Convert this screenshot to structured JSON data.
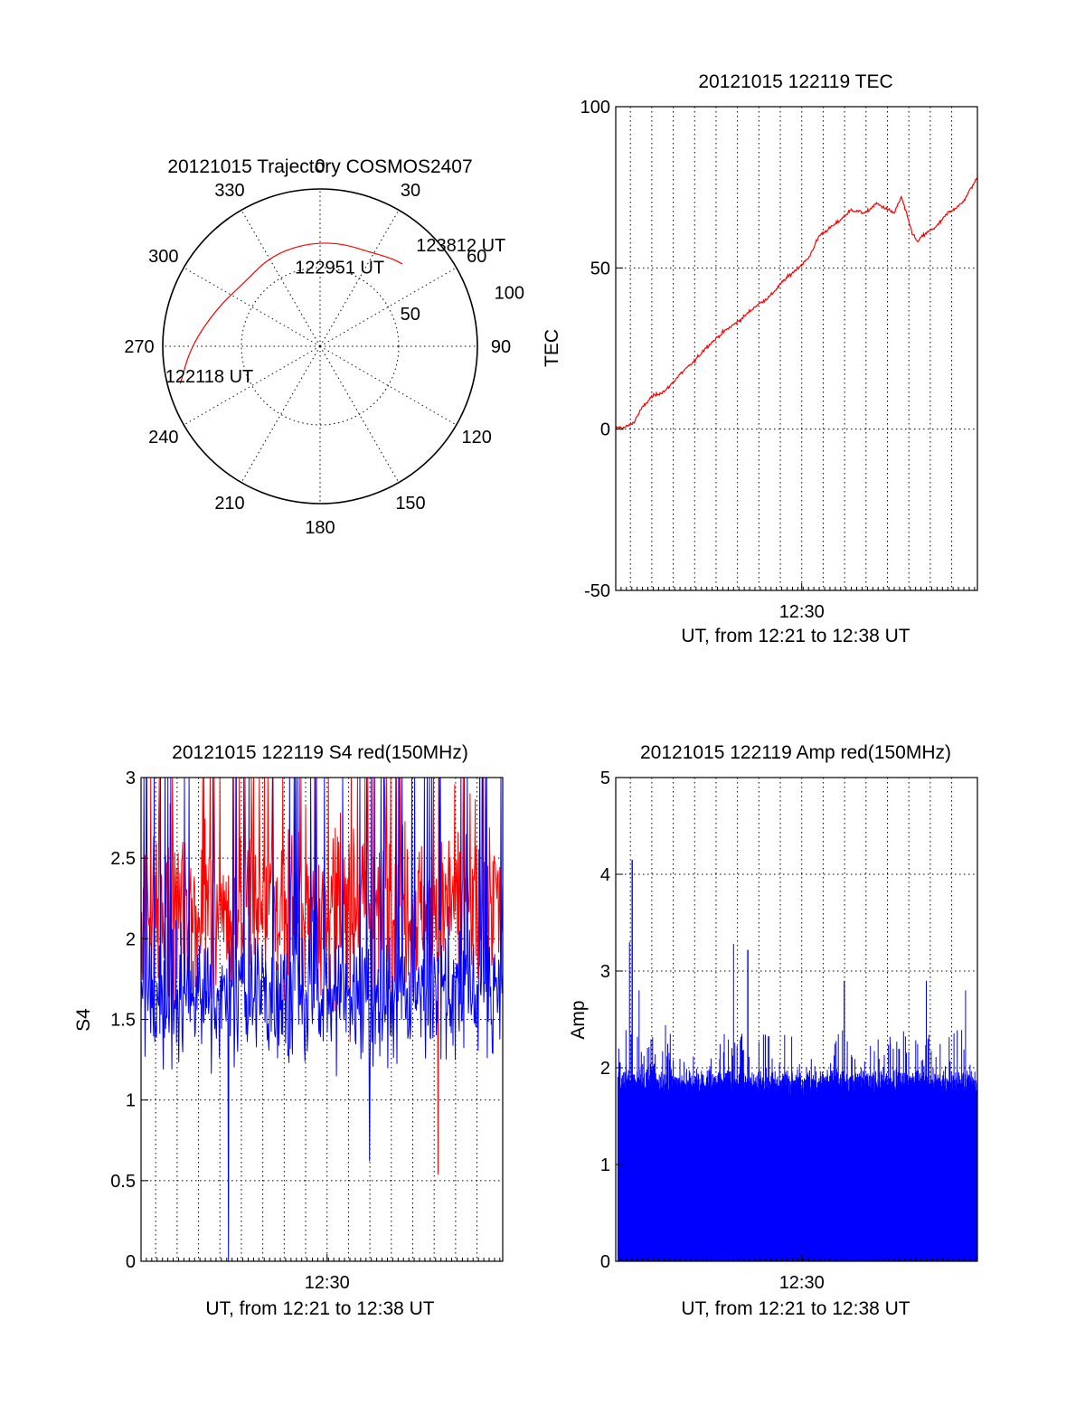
{
  "chart_data": [
    {
      "id": "trajectory",
      "type": "polar",
      "title": "20121015 Trajectory COSMOS2407",
      "azimuth_labels": [
        "0",
        "30",
        "60",
        "90",
        "120",
        "150",
        "180",
        "210",
        "240",
        "270",
        "300",
        "330"
      ],
      "radius_labels": [
        "50",
        "100"
      ],
      "rlim": [
        0,
        100
      ],
      "grid": true,
      "line_color": "#ff0000",
      "track": [
        {
          "az": 255,
          "r": 92
        },
        {
          "az": 270,
          "r": 82
        },
        {
          "az": 290,
          "r": 70
        },
        {
          "az": 310,
          "r": 63
        },
        {
          "az": 330,
          "r": 65
        },
        {
          "az": 350,
          "r": 66
        },
        {
          "az": 10,
          "r": 67
        },
        {
          "az": 29,
          "r": 68
        },
        {
          "az": 39,
          "r": 72
        },
        {
          "az": 45,
          "r": 74
        }
      ],
      "annotations": [
        {
          "text": "123812 UT",
          "az": 56,
          "r": 108
        },
        {
          "text": "122951 UT",
          "az": 15,
          "r": 48
        },
        {
          "text": "122118 UT",
          "az": 252,
          "r": 74
        }
      ]
    },
    {
      "id": "tec",
      "type": "line",
      "title": "20121015 122119 TEC",
      "xlabel": "UT, from 12:21 to 12:38 UT",
      "ylabel": "TEC",
      "xtick_labels": [
        "12:30"
      ],
      "ytick_labels": [
        "-50",
        "0",
        "50",
        "100"
      ],
      "ylim": [
        -50,
        100
      ],
      "xlim_seconds": [
        0,
        1013
      ],
      "grid": true,
      "line_color": "#ff0000",
      "series": [
        {
          "x_seconds": [
            0,
            25,
            50,
            70,
            100,
            140,
            180,
            220,
            250,
            300,
            350,
            390,
            430,
            470,
            490,
            540,
            570,
            620,
            660,
            700,
            730,
            780,
            800,
            830,
            845,
            860,
            900,
            930,
            970,
            1013
          ],
          "values": [
            0.5,
            0.5,
            2,
            6,
            10,
            12,
            17,
            21,
            25,
            30,
            34,
            38,
            41,
            46,
            48,
            53,
            60,
            64,
            68,
            67,
            70,
            67,
            72,
            61,
            58,
            60,
            63,
            67,
            70,
            78
          ]
        }
      ]
    },
    {
      "id": "s4",
      "type": "line",
      "title": "20121015 122119 S4 red(150MHz)",
      "xlabel": "UT, from 12:21 to 12:38 UT",
      "ylabel": "S4",
      "xtick_labels": [
        "12:30"
      ],
      "ytick_labels": [
        "0",
        "0.5",
        "1",
        "1.5",
        "2",
        "2.5",
        "3"
      ],
      "ylim": [
        0,
        3
      ],
      "xlim_seconds": [
        0,
        1013
      ],
      "grid": true,
      "series_colors": [
        "#ff0000",
        "#0000ff"
      ],
      "red_envelope": {
        "median": 2.2,
        "spread": 0.45,
        "min": 1.0,
        "max": 3.0
      },
      "blue_envelope": {
        "median": 1.65,
        "spread": 0.35,
        "min": 0.9,
        "max": 3.0
      },
      "notable_points": [
        {
          "series": 1,
          "x_seconds": 245,
          "value": 0
        },
        {
          "series": 0,
          "x_seconds": 832,
          "value": 0.54
        },
        {
          "series": 1,
          "x_seconds": 640,
          "value": 0.62
        }
      ]
    },
    {
      "id": "amp",
      "type": "bar",
      "title": "20121015 122119 Amp red(150MHz)",
      "xlabel": "UT, from 12:21 to 12:38 UT",
      "ylabel": "Amp",
      "xtick_labels": [
        "12:30"
      ],
      "ytick_labels": [
        "0",
        "1",
        "2",
        "3",
        "4",
        "5"
      ],
      "ylim": [
        0,
        5
      ],
      "xlim_seconds": [
        0,
        1013
      ],
      "grid": true,
      "bar_color": "#0000ff",
      "baseline_level": 1.85,
      "spikes": [
        {
          "x_seconds": 46,
          "value": 4.15
        },
        {
          "x_seconds": 38,
          "value": 3.3
        },
        {
          "x_seconds": 330,
          "value": 3.28
        },
        {
          "x_seconds": 370,
          "value": 3.22
        },
        {
          "x_seconds": 640,
          "value": 2.9
        },
        {
          "x_seconds": 870,
          "value": 2.9
        },
        {
          "x_seconds": 980,
          "value": 2.8
        },
        {
          "x_seconds": 65,
          "value": 2.8
        }
      ]
    }
  ]
}
